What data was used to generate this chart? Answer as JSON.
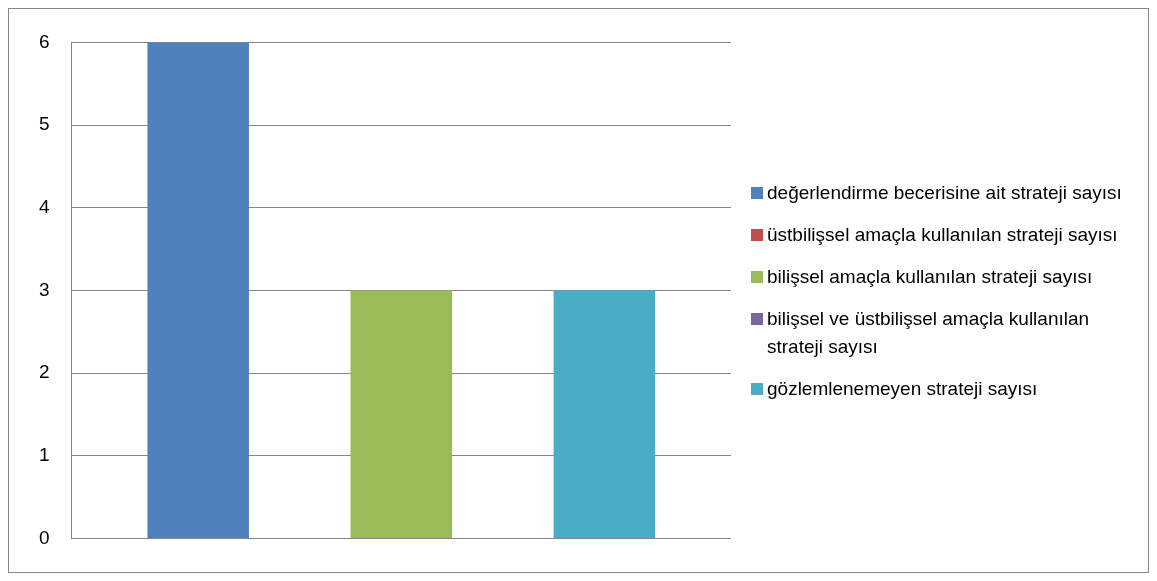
{
  "chart_data": {
    "type": "bar",
    "categories": [
      null
    ],
    "series": [
      {
        "name": "değerlendirme becerisine ait strateji sayısı",
        "color": "#4f81bd",
        "values": [
          6
        ]
      },
      {
        "name": "üstbilişsel amaçla kullanılan strateji sayısı",
        "color": "#c0504d",
        "values": [
          0
        ]
      },
      {
        "name": "bilişsel amaçla kullanılan strateji sayısı",
        "color": "#9bbb59",
        "values": [
          3
        ]
      },
      {
        "name": "bilişsel ve üstbilişsel amaçla kullanılan strateji sayısı",
        "color": "#8064a2",
        "values": [
          0
        ]
      },
      {
        "name": "gözlemlenemeyen strateji sayısı",
        "color": "#4bacc6",
        "values": [
          3
        ]
      }
    ],
    "ylim": [
      0,
      6
    ],
    "yticks": [
      0,
      1,
      2,
      3,
      4,
      5,
      6
    ],
    "grid": "y",
    "legend": "right"
  }
}
